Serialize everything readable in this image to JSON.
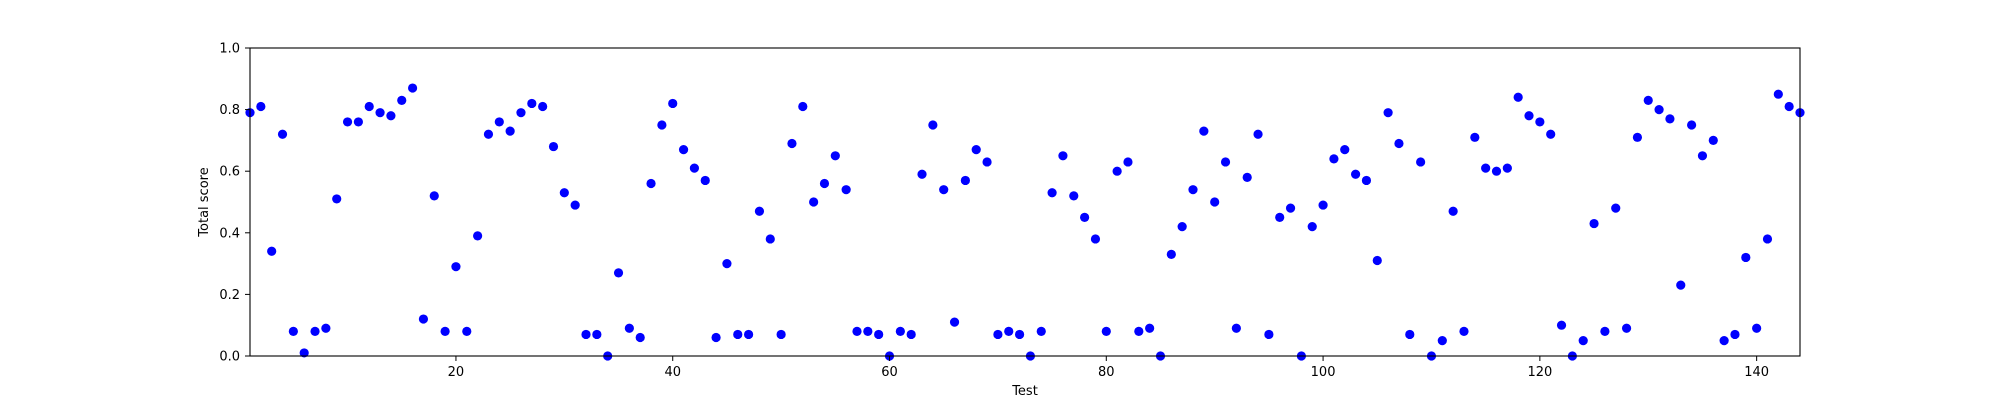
{
  "chart_data": {
    "type": "scatter",
    "title": "",
    "xlabel": "Test",
    "ylabel": "Total score",
    "xlim": [
      1,
      144
    ],
    "ylim": [
      0,
      1.0
    ],
    "xticks": [
      20,
      40,
      60,
      80,
      100,
      120,
      140
    ],
    "xtick_labels": [
      "20",
      "40",
      "60",
      "80",
      "100",
      "120",
      "140"
    ],
    "yticks": [
      0,
      0.2,
      0.4,
      0.6,
      0.8,
      1.0
    ],
    "ytick_labels": [
      "0.0",
      "0.2",
      "0.4",
      "0.6",
      "0.8",
      "1.0"
    ],
    "grid": false,
    "marker_color": "#0000ff",
    "series": [
      {
        "x": [
          1,
          2,
          3,
          4,
          5,
          6,
          7,
          8,
          9,
          10,
          11,
          12,
          13,
          14,
          15,
          16,
          17,
          18,
          19,
          20,
          21,
          22,
          23,
          24,
          25,
          26,
          27,
          28,
          29,
          30,
          31,
          32,
          33,
          34,
          35,
          36,
          37,
          38,
          39,
          40,
          41,
          42,
          43,
          44,
          45,
          46,
          47,
          48,
          49,
          50,
          51,
          52,
          53,
          54,
          55,
          56,
          57,
          58,
          59,
          60,
          61,
          62,
          63,
          64,
          65,
          66,
          67,
          68,
          69,
          70,
          71,
          72,
          73,
          74,
          75,
          76,
          77,
          78,
          79,
          80,
          81,
          82,
          83,
          84,
          85,
          86,
          87,
          88,
          89,
          90,
          91,
          92,
          93,
          94,
          95,
          96,
          97,
          98,
          99,
          100,
          101,
          102,
          103,
          104,
          105,
          106,
          107,
          108,
          109,
          110,
          111,
          112,
          113,
          114,
          115,
          116,
          117,
          118,
          119,
          120,
          121,
          122,
          123,
          124,
          125,
          126,
          127,
          128,
          129,
          130,
          131,
          132,
          133,
          134,
          135,
          136,
          137,
          138,
          139,
          140,
          141,
          142,
          143,
          144
        ],
        "y": [
          0.79,
          0.81,
          0.34,
          0.72,
          0.08,
          0.01,
          0.08,
          0.09,
          0.51,
          0.76,
          0.76,
          0.81,
          0.79,
          0.78,
          0.83,
          0.87,
          0.12,
          0.52,
          0.08,
          0.29,
          0.08,
          0.39,
          0.72,
          0.76,
          0.73,
          0.79,
          0.82,
          0.81,
          0.68,
          0.53,
          0.49,
          0.07,
          0.07,
          0.0,
          0.27,
          0.09,
          0.06,
          0.56,
          0.75,
          0.82,
          0.67,
          0.61,
          0.57,
          0.06,
          0.3,
          0.07,
          0.07,
          0.47,
          0.38,
          0.07,
          0.69,
          0.81,
          0.5,
          0.56,
          0.65,
          0.54,
          0.08,
          0.08,
          0.07,
          0.0,
          0.08,
          0.07,
          0.59,
          0.75,
          0.54,
          0.11,
          0.57,
          0.67,
          0.63,
          0.07,
          0.08,
          0.07,
          0.0,
          0.08,
          0.53,
          0.65,
          0.52,
          0.45,
          0.38,
          0.08,
          0.6,
          0.63,
          0.08,
          0.09,
          0.0,
          0.33,
          0.42,
          0.54,
          0.73,
          0.5,
          0.63,
          0.09,
          0.58,
          0.72,
          0.07,
          0.45,
          0.48,
          0.0,
          0.42,
          0.49,
          0.64,
          0.67,
          0.59,
          0.57,
          0.31,
          0.79,
          0.69,
          0.07,
          0.63,
          0.0,
          0.05,
          0.47,
          0.08,
          0.71,
          0.61,
          0.6,
          0.61,
          0.84,
          0.78,
          0.76,
          0.72,
          0.1,
          0.0,
          0.05,
          0.43,
          0.08,
          0.48,
          0.09,
          0.71,
          0.83,
          0.8,
          0.77,
          0.23,
          0.75,
          0.65,
          0.7,
          0.05,
          0.07,
          0.32,
          0.09,
          0.38,
          0.85,
          0.81,
          0.79
        ]
      }
    ]
  }
}
